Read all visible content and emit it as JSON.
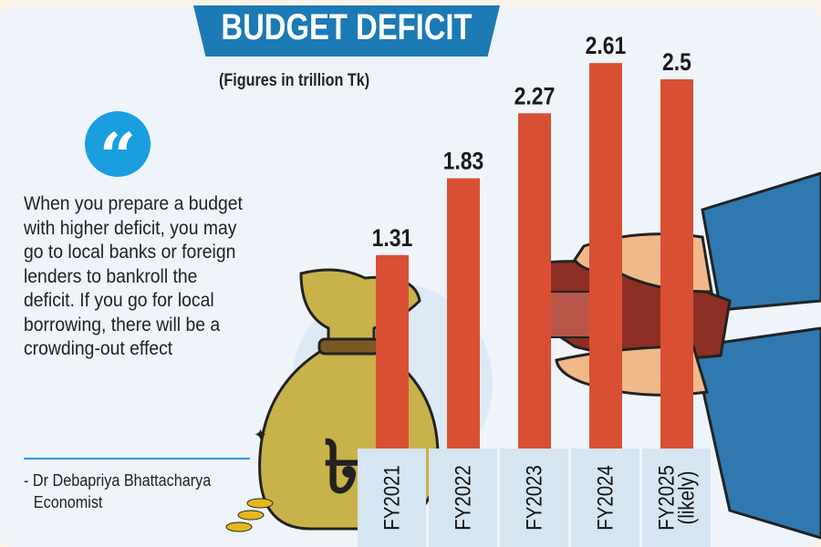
{
  "chart_data": {
    "type": "bar",
    "title": "BUDGET DEFICIT",
    "subtitle": "(Figures in trillion Tk)",
    "categories": [
      "FY2021",
      "FY2022",
      "FY2023",
      "FY2024",
      "FY2025 (likely)"
    ],
    "category_lines": [
      [
        "FY2021"
      ],
      [
        "FY2022"
      ],
      [
        "FY2023"
      ],
      [
        "FY2024"
      ],
      [
        "FY2025",
        "(likely)"
      ]
    ],
    "values": [
      1.31,
      1.83,
      2.27,
      2.61,
      2.5
    ],
    "value_labels": [
      "1.31",
      "1.83",
      "2.27",
      "2.61",
      "2.5"
    ],
    "ylim": [
      0,
      2.8
    ],
    "grid": false,
    "colors": {
      "bar": "#d94f33",
      "banner": "#1c7ab5",
      "quote_icon": "#1a9ee0",
      "label_box": "#d5e5f1"
    }
  },
  "quote": {
    "icon": "quote-icon",
    "text": "When you prepare a budget with higher deficit, you may go to local banks or foreign lenders to bankroll the deficit. If you go for local borrowing, there will be a crowding-out effect",
    "author": "- Dr Debapriya Bhattacharya",
    "role": "Economist"
  }
}
